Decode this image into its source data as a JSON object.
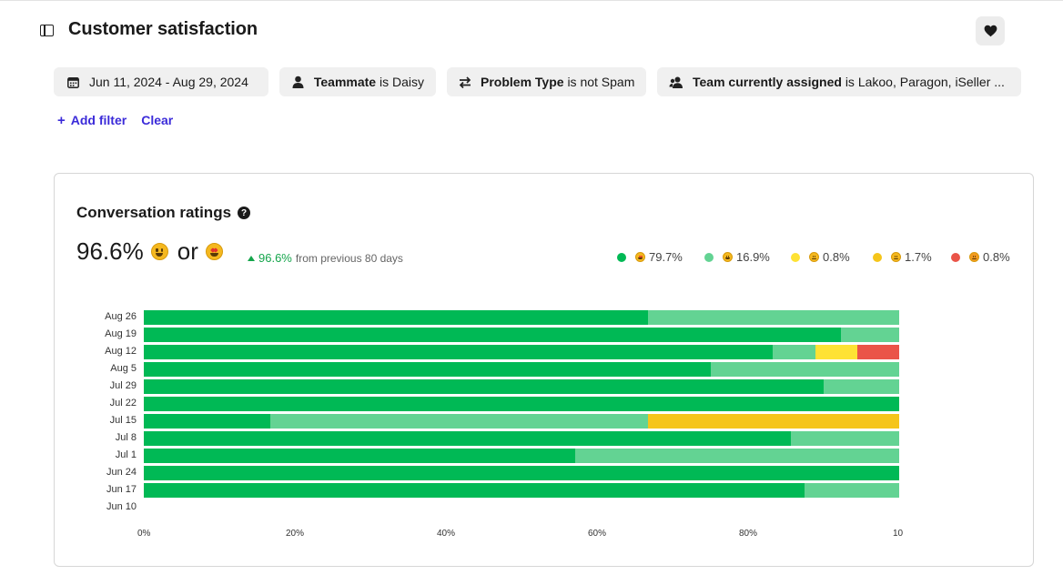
{
  "header": {
    "title": "Customer satisfaction"
  },
  "filters": {
    "date": "Jun 11, 2024 - Aug 29, 2024",
    "teammate_field": "Teammate",
    "teammate_value": "is Daisy",
    "problem_field": "Problem Type",
    "problem_value": "is not Spam",
    "team_field": "Team currently assigned",
    "team_value": "is Lakoo, Paragon, iSeller ..."
  },
  "filter_actions": {
    "add": "Add filter",
    "clear": "Clear"
  },
  "card": {
    "title": "Conversation ratings",
    "metric_value": "96.6%",
    "metric_or": "or",
    "delta_value": "96.6%",
    "delta_text": "from previous 80 days"
  },
  "legend": [
    {
      "icon": "star-struck-emoji",
      "color": "#00b955",
      "value": "79.7%"
    },
    {
      "icon": "grinning-emoji",
      "color": "#63d393",
      "value": "16.9%"
    },
    {
      "icon": "neutral-face-emoji",
      "color": "#fee234",
      "value": "0.8%"
    },
    {
      "icon": "slightly-frowning-emoji",
      "color": "#f5c51a",
      "value": "1.7%"
    },
    {
      "icon": "angry-face-emoji",
      "color": "#ea5448",
      "value": "0.8%"
    }
  ],
  "chart_data": {
    "type": "bar",
    "orientation": "horizontal",
    "stacked": true,
    "categories": [
      "Aug 26",
      "Aug 19",
      "Aug 12",
      "Aug 5",
      "Jul 29",
      "Jul 22",
      "Jul 15",
      "Jul 8",
      "Jul 1",
      "Jun 24",
      "Jun 17",
      "Jun 10"
    ],
    "series": [
      {
        "color": "#00b955",
        "values": [
          66.7,
          92.3,
          83.3,
          75.0,
          90.0,
          100,
          16.7,
          85.7,
          57.1,
          100,
          87.5,
          0
        ]
      },
      {
        "color": "#63d393",
        "values": [
          33.3,
          7.7,
          5.6,
          25.0,
          10.0,
          0,
          50.0,
          14.3,
          42.9,
          0,
          12.5,
          0
        ]
      },
      {
        "color": "#fee234",
        "values": [
          0,
          0,
          5.6,
          0,
          0,
          0,
          0,
          0,
          0,
          0,
          0,
          0
        ]
      },
      {
        "color": "#f5c51a",
        "values": [
          0,
          0,
          0,
          0,
          0,
          0,
          33.3,
          0,
          0,
          0,
          0,
          0
        ]
      },
      {
        "color": "#ea5448",
        "values": [
          0,
          0,
          5.5,
          0,
          0,
          0,
          0,
          0,
          0,
          0,
          0,
          0
        ]
      }
    ],
    "x_ticks": [
      "0%",
      "20%",
      "40%",
      "60%",
      "80%",
      "10"
    ],
    "xlim": [
      0,
      100
    ]
  }
}
